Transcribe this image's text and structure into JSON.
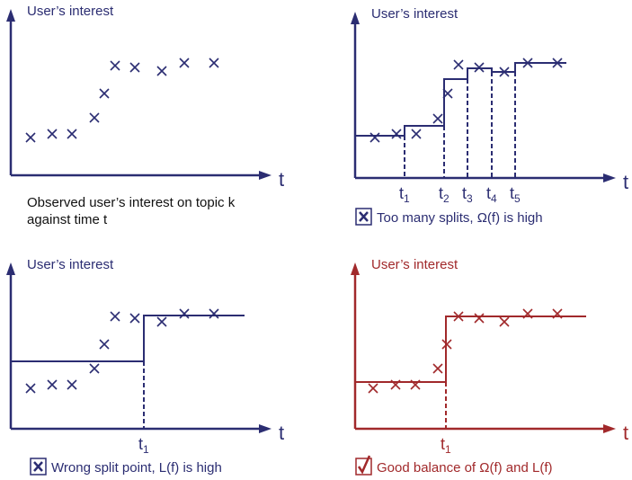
{
  "colors": {
    "blue": "#2b2d72",
    "red": "#a1292b"
  },
  "panels": [
    {
      "id": "observed",
      "title": "User’s interest",
      "axis_label": "t",
      "color": "blue",
      "caption_lines": [
        "Observed user’s interest on topic k",
        "against time t"
      ],
      "split_labels": []
    },
    {
      "id": "too-many-splits",
      "title": "User’s interest",
      "axis_label": "t",
      "color": "blue",
      "caption": "Too many splits, Ω(f)  is high",
      "caption_icon": "cross-box-icon",
      "split_labels": [
        {
          "base": "t",
          "sub": "1"
        },
        {
          "base": "t",
          "sub": "2"
        },
        {
          "base": "t",
          "sub": "3"
        },
        {
          "base": "t",
          "sub": "4"
        },
        {
          "base": "t",
          "sub": "5"
        }
      ]
    },
    {
      "id": "wrong-split",
      "title": "User’s interest",
      "axis_label": "t",
      "color": "blue",
      "caption": "Wrong split point, L(f) is high",
      "caption_icon": "cross-box-icon",
      "split_labels": [
        {
          "base": "t",
          "sub": "1"
        }
      ]
    },
    {
      "id": "good-balance",
      "title": "User’s interest",
      "axis_label": "t",
      "color": "red",
      "caption": "Good balance of Ω(f) and L(f)",
      "caption_icon": "check-box-icon",
      "split_labels": [
        {
          "base": "t",
          "sub": "1"
        }
      ]
    }
  ]
}
